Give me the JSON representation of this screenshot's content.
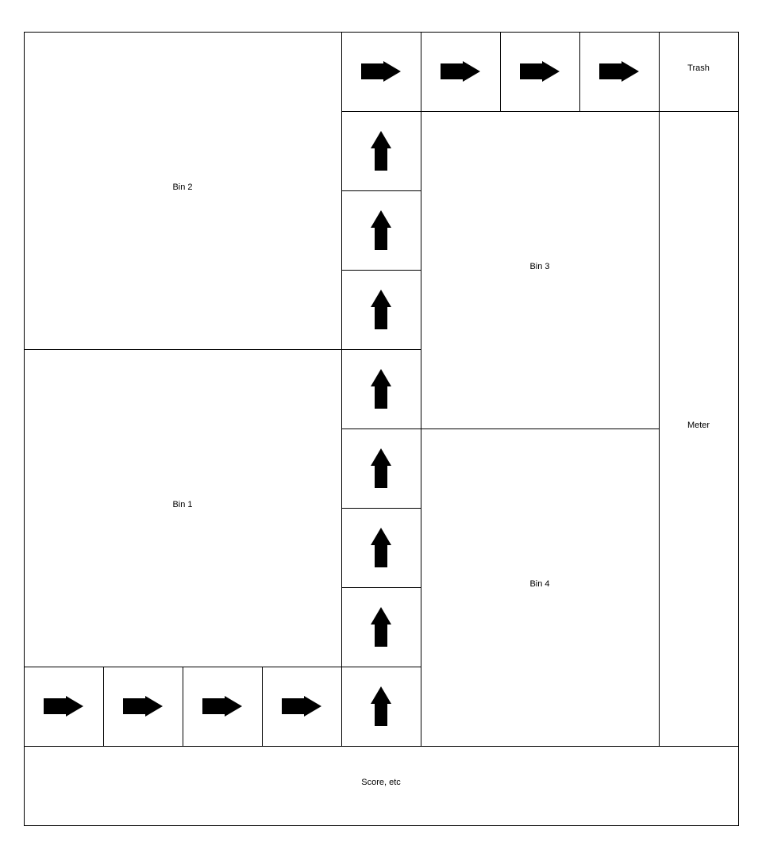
{
  "zones": {
    "bin1": "Bin 1",
    "bin2": "Bin 2",
    "bin3": "Bin 3",
    "bin4": "Bin 4",
    "trash": "Trash",
    "meter": "Meter",
    "score": "Score, etc"
  },
  "conveyor": {
    "bottom_row": {
      "direction": "right",
      "count": 4
    },
    "column": {
      "direction": "up",
      "count": 8
    },
    "top_row": {
      "direction": "right",
      "count": 4
    }
  },
  "colors": {
    "line": "#000000",
    "arrow": "#000000",
    "background": "#ffffff"
  }
}
